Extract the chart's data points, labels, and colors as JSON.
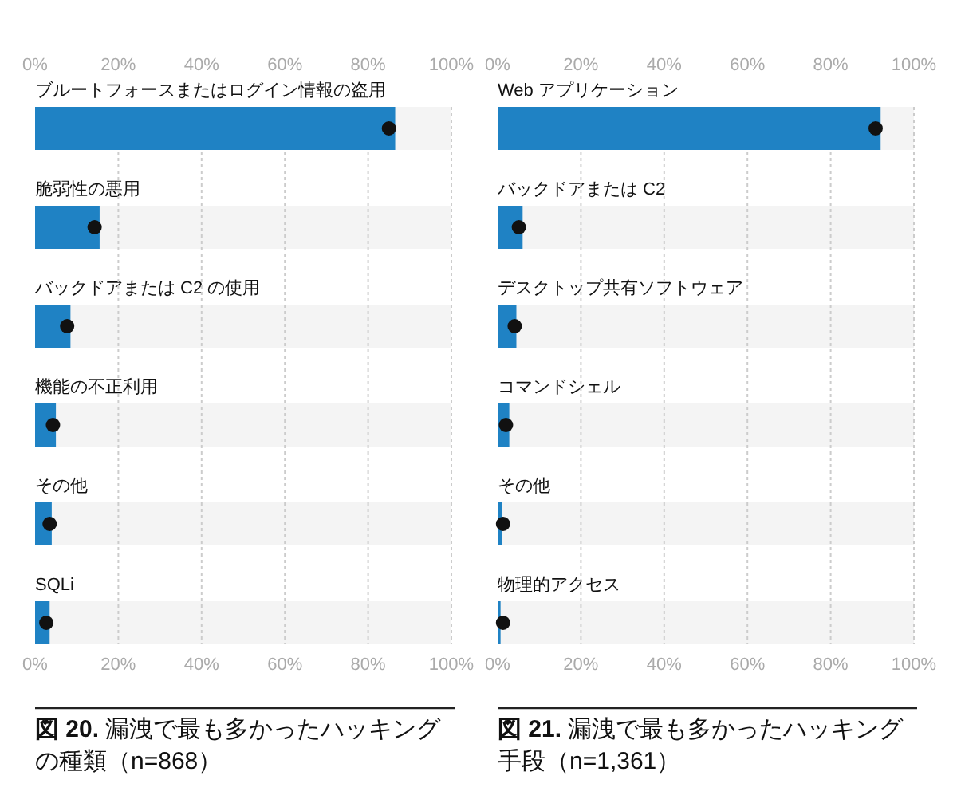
{
  "chart_data": [
    {
      "type": "bar",
      "orientation": "horizontal",
      "title": "図 20. 漏洩で最も多かったハッキングの種類（n=868）",
      "categories": [
        "ブルートフォースまたはログイン情報の盗用",
        "脆弱性の悪用",
        "バックドアまたは C2 の使用",
        "機能の不正利用",
        "その他",
        "SQLi"
      ],
      "series": [
        {
          "type": "bar",
          "color": "#1f82c4",
          "values": [
            86.5,
            15.5,
            8.5,
            5,
            4,
            3.5
          ]
        },
        {
          "type": "scatter",
          "color": "#111111",
          "values": [
            85,
            14.3,
            7.7,
            4.3,
            3.5,
            2.7
          ]
        }
      ],
      "marker": "circle",
      "grid": "x",
      "xlim": [
        0,
        100
      ],
      "xticks": [
        {
          "value": 0,
          "label": "0%"
        },
        {
          "value": 20,
          "label": "20%"
        },
        {
          "value": 40,
          "label": "40%"
        },
        {
          "value": 60,
          "label": "60%"
        },
        {
          "value": 80,
          "label": "80%"
        },
        {
          "value": 100,
          "label": "100%"
        }
      ],
      "x2lim": [
        0,
        100
      ],
      "x2ticks": [
        {
          "value": 0,
          "label": "0%"
        },
        {
          "value": 20,
          "label": "20%"
        },
        {
          "value": 40,
          "label": "40%"
        },
        {
          "value": 60,
          "label": "60%"
        },
        {
          "value": 80,
          "label": "80%"
        },
        {
          "value": 100,
          "label": "100%"
        }
      ]
    },
    {
      "type": "bar",
      "orientation": "horizontal",
      "title": "図 21. 漏洩で最も多かったハッキング手段（n=1,361）",
      "categories": [
        "Web アプリケーション",
        "バックドアまたは C2",
        "デスクトップ共有ソフトウェア",
        "コマンドシェル",
        "その他",
        "物理的アクセス"
      ],
      "series": [
        {
          "type": "bar",
          "color": "#1f82c4",
          "values": [
            92,
            6,
            4.5,
            2.8,
            1,
            0.7
          ]
        },
        {
          "type": "scatter",
          "color": "#111111",
          "values": [
            90.8,
            5.1,
            4.1,
            2.0,
            1.3,
            1.3
          ]
        }
      ],
      "marker": "circle",
      "grid": "x",
      "xlim": [
        0,
        100
      ],
      "xticks": [
        {
          "value": 0,
          "label": "0%"
        },
        {
          "value": 20,
          "label": "20%"
        },
        {
          "value": 40,
          "label": "40%"
        },
        {
          "value": 60,
          "label": "60%"
        },
        {
          "value": 80,
          "label": "80%"
        },
        {
          "value": 100,
          "label": "100%"
        }
      ],
      "x2lim": [
        0,
        100
      ],
      "x2ticks": [
        {
          "value": 0,
          "label": "0%"
        },
        {
          "value": 20,
          "label": "20%"
        },
        {
          "value": 40,
          "label": "40%"
        },
        {
          "value": 60,
          "label": "60%"
        },
        {
          "value": 80,
          "label": "80%"
        },
        {
          "value": 100,
          "label": "100%"
        }
      ]
    }
  ]
}
